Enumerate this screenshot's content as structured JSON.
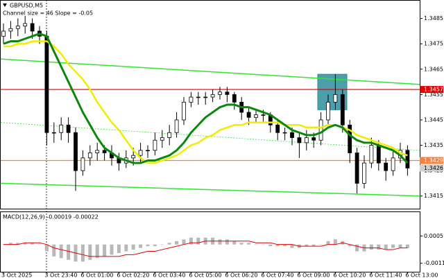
{
  "chart_data": [
    {
      "type": "candlestick",
      "title": "GBPUSD,M5",
      "subtitle": "Channel size = 46 Slope = -0.05",
      "categories": [
        "3 Oct 2025",
        null,
        null,
        null,
        null,
        null,
        "3 Oct 23:40",
        null,
        null,
        null,
        null,
        "6 Oct 01:00",
        null,
        null,
        null,
        null,
        "6 Oct 02:20",
        null,
        null,
        null,
        null,
        "6 Oct 03:40",
        null,
        null,
        null,
        null,
        "6 Oct 05:00",
        null,
        null,
        null,
        null,
        "6 Oct 06:20",
        null,
        null,
        null,
        null,
        "6 Oct 07:40",
        null,
        null,
        null,
        null,
        "6 Oct 09:00",
        null,
        null,
        null,
        null,
        "6 Oct 10:20",
        null,
        null,
        null,
        null,
        "6 Oct 11:40",
        null,
        null,
        null,
        null,
        "6 Oct 13:00"
      ],
      "open": [
        1.3478,
        1.348,
        1.3481,
        1.3482,
        1.3483,
        1.348,
        1.3478,
        1.344,
        1.344,
        1.3443,
        1.344,
        1.3425,
        1.343,
        1.3432,
        1.3433,
        1.3432,
        1.343,
        1.3428,
        1.343,
        1.3431,
        1.3433,
        1.3433,
        1.3437,
        1.3438,
        1.344,
        1.3445,
        1.3452,
        1.3454,
        1.3454,
        1.3454,
        1.3455,
        1.3456,
        1.3455,
        1.3452,
        1.3448,
        1.3446,
        1.3447,
        1.3447,
        1.3443,
        1.344,
        1.344,
        1.3438,
        1.3436,
        1.3438,
        1.3437,
        1.3445,
        1.3452,
        1.3455,
        1.3443,
        1.3432,
        1.342,
        1.3428,
        1.3435,
        1.3428,
        1.3425,
        1.343,
        1.3433
      ],
      "high": [
        1.3483,
        1.3484,
        1.3485,
        1.3486,
        1.3485,
        1.3482,
        1.348,
        1.3444,
        1.3446,
        1.3446,
        1.3442,
        1.3433,
        1.3435,
        1.3436,
        1.3435,
        1.3435,
        1.3432,
        1.3433,
        1.3434,
        1.3436,
        1.3435,
        1.344,
        1.3441,
        1.3443,
        1.3448,
        1.3454,
        1.3456,
        1.3456,
        1.3456,
        1.3457,
        1.3458,
        1.3458,
        1.3456,
        1.3454,
        1.345,
        1.3449,
        1.3449,
        1.3448,
        1.3445,
        1.3442,
        1.3442,
        1.344,
        1.3441,
        1.344,
        1.3448,
        1.3455,
        1.3463,
        1.3457,
        1.3445,
        1.3434,
        1.3431,
        1.3438,
        1.3437,
        1.343,
        1.3433,
        1.3436,
        1.3435
      ],
      "low": [
        1.3475,
        1.3477,
        1.3478,
        1.3479,
        1.3477,
        1.3475,
        1.3435,
        1.3436,
        1.3437,
        1.3436,
        1.3417,
        1.3423,
        1.3427,
        1.3429,
        1.3429,
        1.3427,
        1.3425,
        1.3426,
        1.3427,
        1.3428,
        1.343,
        1.3431,
        1.3434,
        1.3435,
        1.3438,
        1.3443,
        1.345,
        1.3451,
        1.3451,
        1.3452,
        1.3453,
        1.3452,
        1.3449,
        1.3445,
        1.3443,
        1.3444,
        1.3444,
        1.344,
        1.3437,
        1.3437,
        1.3435,
        1.343,
        1.3433,
        1.3434,
        1.3435,
        1.3443,
        1.3449,
        1.344,
        1.3428,
        1.3416,
        1.3418,
        1.3426,
        1.3425,
        1.3421,
        1.3423,
        1.3428,
        1.3423
      ],
      "close": [
        1.348,
        1.3481,
        1.3482,
        1.3483,
        1.348,
        1.3478,
        1.344,
        1.344,
        1.3443,
        1.344,
        1.3425,
        1.343,
        1.3432,
        1.3433,
        1.3432,
        1.343,
        1.3428,
        1.343,
        1.3431,
        1.3433,
        1.3433,
        1.3437,
        1.3438,
        1.344,
        1.3445,
        1.3452,
        1.3454,
        1.3454,
        1.3454,
        1.3455,
        1.3456,
        1.3455,
        1.3452,
        1.3448,
        1.3446,
        1.3447,
        1.3447,
        1.3443,
        1.344,
        1.344,
        1.3438,
        1.3436,
        1.3438,
        1.3437,
        1.3445,
        1.3452,
        1.3455,
        1.3443,
        1.3432,
        1.342,
        1.3428,
        1.3435,
        1.3428,
        1.3425,
        1.343,
        1.3433,
        1.3426
      ],
      "series": [
        {
          "color": "#f2ec00",
          "values": [
            1.3474,
            1.3474,
            1.3475,
            1.3475,
            1.3476,
            1.3476,
            1.3476,
            1.3474,
            1.3471,
            1.3467,
            1.3464,
            1.3461,
            1.3457,
            1.3452,
            1.3448,
            1.3444,
            1.3441,
            1.3437,
            1.3433,
            1.343,
            1.3428,
            1.3428,
            1.3429,
            1.343,
            1.3431,
            1.3433,
            1.3435,
            1.3436,
            1.3438,
            1.3439,
            1.3441,
            1.3442,
            1.3443,
            1.3443,
            1.3444,
            1.3444,
            1.3444,
            1.3444,
            1.3444,
            1.3443,
            1.3443,
            1.3443,
            1.3442,
            1.3442,
            1.3442,
            1.3443,
            1.3443,
            1.3442,
            1.3441,
            1.3439,
            1.3438,
            1.3437,
            1.3436,
            1.3435,
            1.3434,
            1.3432,
            1.3431
          ]
        },
        {
          "color": "#0b870b",
          "values": [
            1.3475,
            1.3476,
            1.3476,
            1.3477,
            1.3478,
            1.3479,
            1.3478,
            1.3472,
            1.3466,
            1.346,
            1.3454,
            1.3448,
            1.3443,
            1.3438,
            1.3434,
            1.3432,
            1.343,
            1.3429,
            1.3428,
            1.3428,
            1.3429,
            1.3429,
            1.343,
            1.3431,
            1.3433,
            1.3436,
            1.344,
            1.3443,
            1.3446,
            1.3448,
            1.345,
            1.3451,
            1.3451,
            1.345,
            1.345,
            1.3449,
            1.3448,
            1.3447,
            1.3445,
            1.3443,
            1.3441,
            1.344,
            1.3439,
            1.3439,
            1.344,
            1.3442,
            1.3443,
            1.3442,
            1.3439,
            1.3437,
            1.3436,
            1.3436,
            1.3435,
            1.3434,
            1.3433,
            1.3431,
            1.3428
          ]
        }
      ],
      "channel_lines": [
        [
          1.3469,
          1.3459
        ],
        [
          1.3444,
          1.3433
        ],
        [
          1.342,
          1.3415
        ]
      ],
      "channel_color": "#2fe82f",
      "levels": [
        {
          "value": 1.3457,
          "color": "#e00000"
        },
        {
          "value": 1.3429,
          "color": "#ff7f3f"
        }
      ],
      "last_price": 1.3426,
      "highlight_zone": [
        1.3449,
        1.3463
      ],
      "ylim": [
        1.341,
        1.3492
      ],
      "yticks": [
        1.3485,
        1.3475,
        1.3465,
        1.3455,
        1.3445,
        1.3435,
        1.3425,
        1.3415
      ]
    },
    {
      "type": "macd",
      "title": "MACD(12,26,9) -0.00019 -0.00022",
      "histogram": {
        "color": "#b8b8b8",
        "values": [
          0,
          0.0001,
          0.0001,
          0.0001,
          0.0001,
          0,
          -0.0004,
          -0.0007,
          -0.0008,
          -0.0009,
          -0.001,
          -0.001,
          -0.0009,
          -0.0008,
          -0.0007,
          -0.0006,
          -0.0005,
          -0.0004,
          -0.0003,
          -0.0002,
          -0.0001,
          -0.0001,
          0,
          0.0001,
          0.0002,
          0.0003,
          0.0004,
          0.0004,
          0.0004,
          0.0004,
          0.0003,
          0.0003,
          0.0002,
          0.0001,
          0.0001,
          0,
          0,
          -0.0001,
          -0.0001,
          -0.0001,
          -0.0002,
          -0.0002,
          -0.0001,
          -0.0001,
          0,
          0.0002,
          0.0003,
          0.0002,
          -0.0001,
          -0.0004,
          -0.0004,
          -0.0003,
          -0.0003,
          -0.0003,
          -0.0002,
          -0.0002,
          -0.0002
        ]
      },
      "signal": {
        "color": "#e00000",
        "values": [
          0,
          0,
          0,
          0.0001,
          0.0001,
          0.0001,
          0,
          -0.0002,
          -0.0003,
          -0.0004,
          -0.0005,
          -0.0006,
          -0.0007,
          -0.0007,
          -0.0007,
          -0.0007,
          -0.0007,
          -0.0006,
          -0.0006,
          -0.0005,
          -0.0004,
          -0.0004,
          -0.0003,
          -0.0002,
          -0.0001,
          0,
          0.0001,
          0.0001,
          0.0002,
          0.0002,
          0.0002,
          0.0002,
          0.0002,
          0.0002,
          0.0002,
          0.0001,
          0.0001,
          0.0001,
          0,
          0,
          0,
          -0.0001,
          -0.0001,
          -0.0001,
          -0.0001,
          0,
          0,
          0.0001,
          0,
          -0.0001,
          -0.0002,
          -0.0002,
          -0.0002,
          -0.0003,
          -0.0003,
          -0.0002,
          -0.0002
        ]
      },
      "ylim": [
        -0.0016,
        0.0019
      ],
      "yticks": [
        0.0005,
        -0.0011
      ]
    }
  ]
}
